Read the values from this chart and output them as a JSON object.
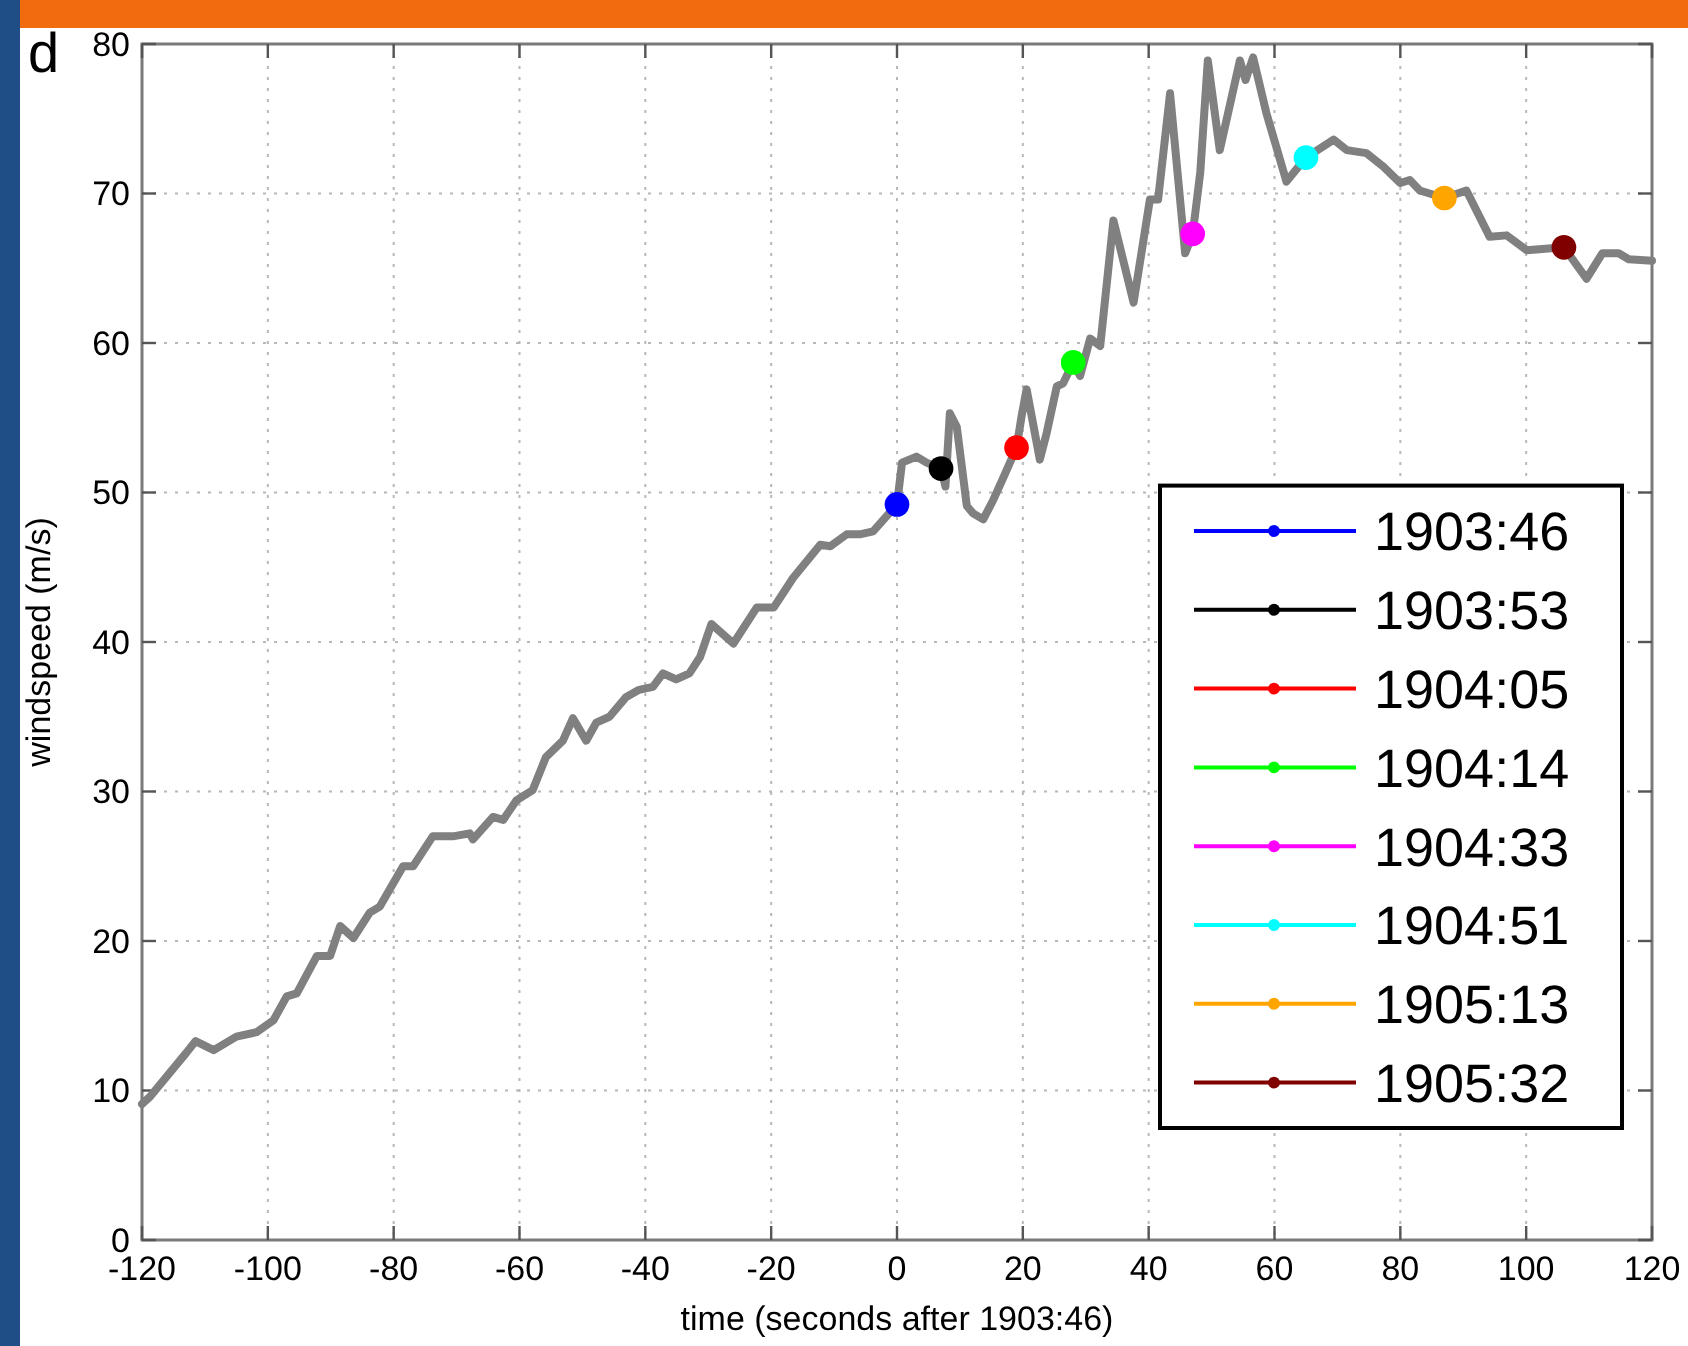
{
  "chart_data": {
    "type": "line",
    "xlabel": "time (seconds after 1903:46)",
    "ylabel": "windspeed (m/s)",
    "annotations": [
      "d"
    ],
    "xlim": [
      -120,
      120
    ],
    "xticks": [
      -120,
      -100,
      -80,
      -60,
      -40,
      -20,
      0,
      20,
      40,
      60,
      80,
      100,
      120
    ],
    "ylim": [
      0,
      80
    ],
    "yticks": [
      0,
      10,
      20,
      30,
      40,
      50,
      60,
      70,
      80
    ],
    "grid": true,
    "legend": "bottom right",
    "series": [
      {
        "color": "#808080",
        "line_style": "solid",
        "x": [
          -120,
          -118.7,
          -113,
          -111.5,
          -108.6,
          -105,
          -101.8,
          -99.1,
          -97,
          -95.4,
          -92.2,
          -90.1,
          -88.5,
          -86.4,
          -83.8,
          -82.2,
          -78.5,
          -76.9,
          -73.8,
          -70.6,
          -67.9,
          -67.4,
          -64.2,
          -62.6,
          -60.5,
          -57.9,
          -55.8,
          -53.1,
          -51.5,
          -49.4,
          -47.8,
          -45.7,
          -43.1,
          -41,
          -38.8,
          -37.2,
          -35.1,
          -33,
          -31.3,
          -29.5,
          -26,
          -22.3,
          -19.6,
          -16.5,
          -12.2,
          -10.6,
          -8,
          -5.9,
          -3.8,
          0,
          0.8,
          3.1,
          4.7,
          7,
          7.7,
          8.4,
          9.5,
          11.1,
          12.1,
          13.7,
          15.3,
          16.9,
          19,
          19.8,
          20.6,
          22.7,
          23.8,
          25.4,
          26.4,
          28,
          29.1,
          30.7,
          32.3,
          34.4,
          37.6,
          40.2,
          41.5,
          43.4,
          45.8,
          47,
          48.2,
          49.4,
          51.3,
          54.5,
          55.4,
          56.6,
          58.7,
          61.9,
          65,
          69.4,
          71.5,
          74.6,
          77.3,
          80,
          81.5,
          83.1,
          87,
          90.5,
          94.2,
          96.9,
          100.1,
          106,
          109.6,
          112.1,
          114.7,
          116.3,
          120
        ],
        "values": [
          9.1,
          9.6,
          12.5,
          13.3,
          12.7,
          13.6,
          13.9,
          14.7,
          16.3,
          16.5,
          19.0,
          19.0,
          21.0,
          20.2,
          21.9,
          22.3,
          25.0,
          25.0,
          27.0,
          27.0,
          27.2,
          26.8,
          28.3,
          28.1,
          29.4,
          30.1,
          32.3,
          33.4,
          34.9,
          33.4,
          34.6,
          35.0,
          36.3,
          36.8,
          37.0,
          37.9,
          37.5,
          37.9,
          39.0,
          41.2,
          39.9,
          42.3,
          42.3,
          44.3,
          46.5,
          46.4,
          47.2,
          47.2,
          47.4,
          49.2,
          52.0,
          52.4,
          52.0,
          51.6,
          50.4,
          55.3,
          54.4,
          49.1,
          48.6,
          48.2,
          49.5,
          51.0,
          53.0,
          55.1,
          56.9,
          52.2,
          54.0,
          57.1,
          57.3,
          58.7,
          57.8,
          60.3,
          59.8,
          68.2,
          62.7,
          69.6,
          69.6,
          76.7,
          66.0,
          67.3,
          71.4,
          78.9,
          72.9,
          78.9,
          77.6,
          79.1,
          75.4,
          70.8,
          72.4,
          73.6,
          72.9,
          72.7,
          71.8,
          70.7,
          70.9,
          70.2,
          69.7,
          70.2,
          67.1,
          67.2,
          66.2,
          66.4,
          64.3,
          66.0,
          66.0,
          65.6,
          65.5
        ]
      },
      {
        "type": "scatter",
        "name": "1903:46",
        "color": "#0000ff",
        "marker": "circle",
        "x": [
          0
        ],
        "values": [
          49.2
        ]
      },
      {
        "type": "scatter",
        "name": "1903:53",
        "color": "#000000",
        "marker": "circle",
        "x": [
          7
        ],
        "values": [
          51.6
        ]
      },
      {
        "type": "scatter",
        "name": "1904:05",
        "color": "#ff0000",
        "marker": "circle",
        "x": [
          19
        ],
        "values": [
          53.0
        ]
      },
      {
        "type": "scatter",
        "name": "1904:14",
        "color": "#00ff00",
        "marker": "circle",
        "x": [
          28
        ],
        "values": [
          58.7
        ]
      },
      {
        "type": "scatter",
        "name": "1904:33",
        "color": "#ff00ff",
        "marker": "circle",
        "x": [
          47
        ],
        "values": [
          67.3
        ]
      },
      {
        "type": "scatter",
        "name": "1904:51",
        "color": "#00ffff",
        "marker": "circle",
        "x": [
          65
        ],
        "values": [
          72.4
        ]
      },
      {
        "type": "scatter",
        "name": "1905:13",
        "color": "#ffa500",
        "marker": "circle",
        "x": [
          87
        ],
        "values": [
          69.7
        ]
      },
      {
        "type": "scatter",
        "name": "1905:32",
        "color": "#800000",
        "marker": "circle",
        "x": [
          106
        ],
        "values": [
          66.4
        ]
      }
    ]
  }
}
